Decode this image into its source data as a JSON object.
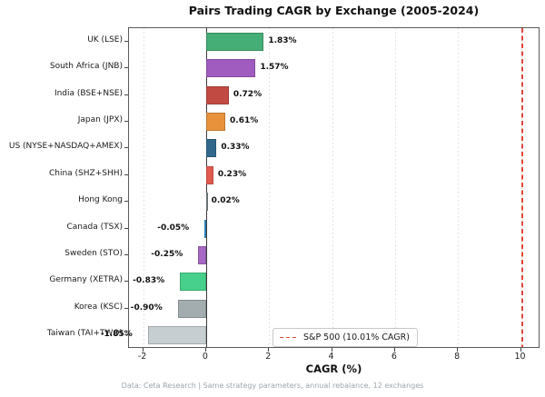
{
  "title": "Pairs Trading CAGR by Exchange (2005-2024)",
  "footer": "Data: Ceta Research | Same strategy parameters, annual rebalance, 12 exchanges",
  "chart_data": {
    "type": "bar",
    "orientation": "horizontal",
    "title": "Pairs Trading CAGR by Exchange (2005-2024)",
    "xlabel": "CAGR (%)",
    "xlim": [
      -2.45,
      10.62
    ],
    "xticks": [
      -2,
      0,
      2,
      4,
      6,
      8,
      10
    ],
    "grid": "vertical-dotted",
    "categories": [
      "UK (LSE)",
      "South Africa (JNB)",
      "India (BSE+NSE)",
      "Japan (JPX)",
      "US (NYSE+NASDAQ+AMEX)",
      "China (SHZ+SHH)",
      "Hong Kong",
      "Canada (TSX)",
      "Sweden (STO)",
      "Germany (XETRA)",
      "Korea (KSC)",
      "Taiwan (TAI+TWO)"
    ],
    "values": [
      1.83,
      1.57,
      0.72,
      0.61,
      0.33,
      0.23,
      0.02,
      -0.05,
      -0.25,
      -0.83,
      -0.9,
      -1.85
    ],
    "value_labels": [
      "1.83%",
      "1.57%",
      "0.72%",
      "0.61%",
      "0.33%",
      "0.23%",
      "0.02%",
      "-0.05%",
      "-0.25%",
      "-0.83%",
      "-0.90%",
      "-1.85%"
    ],
    "colors": [
      "#45ad76",
      "#a05cbe",
      "#c14b43",
      "#e8923c",
      "#31688c",
      "#e25b50",
      "#7f8c8d",
      "#2f9bd8",
      "#a869c5",
      "#47d08b",
      "#a3adb0",
      "#c7ced2"
    ],
    "reference_line": {
      "value": 10.01,
      "label": "S&P 500 (10.01% CAGR)",
      "color": "#e0473c",
      "style": "dashed"
    },
    "legend": {
      "position": "lower-center-right",
      "entries": [
        {
          "label": "S&P 500 (10.01% CAGR)",
          "color": "#e0473c",
          "style": "dashed-line"
        }
      ]
    }
  },
  "style_colors": {
    "zero_line": "#3a3a3a",
    "grid": "#dcdcdc",
    "spine": "#595959",
    "footer_text": "#9aa5ad"
  }
}
